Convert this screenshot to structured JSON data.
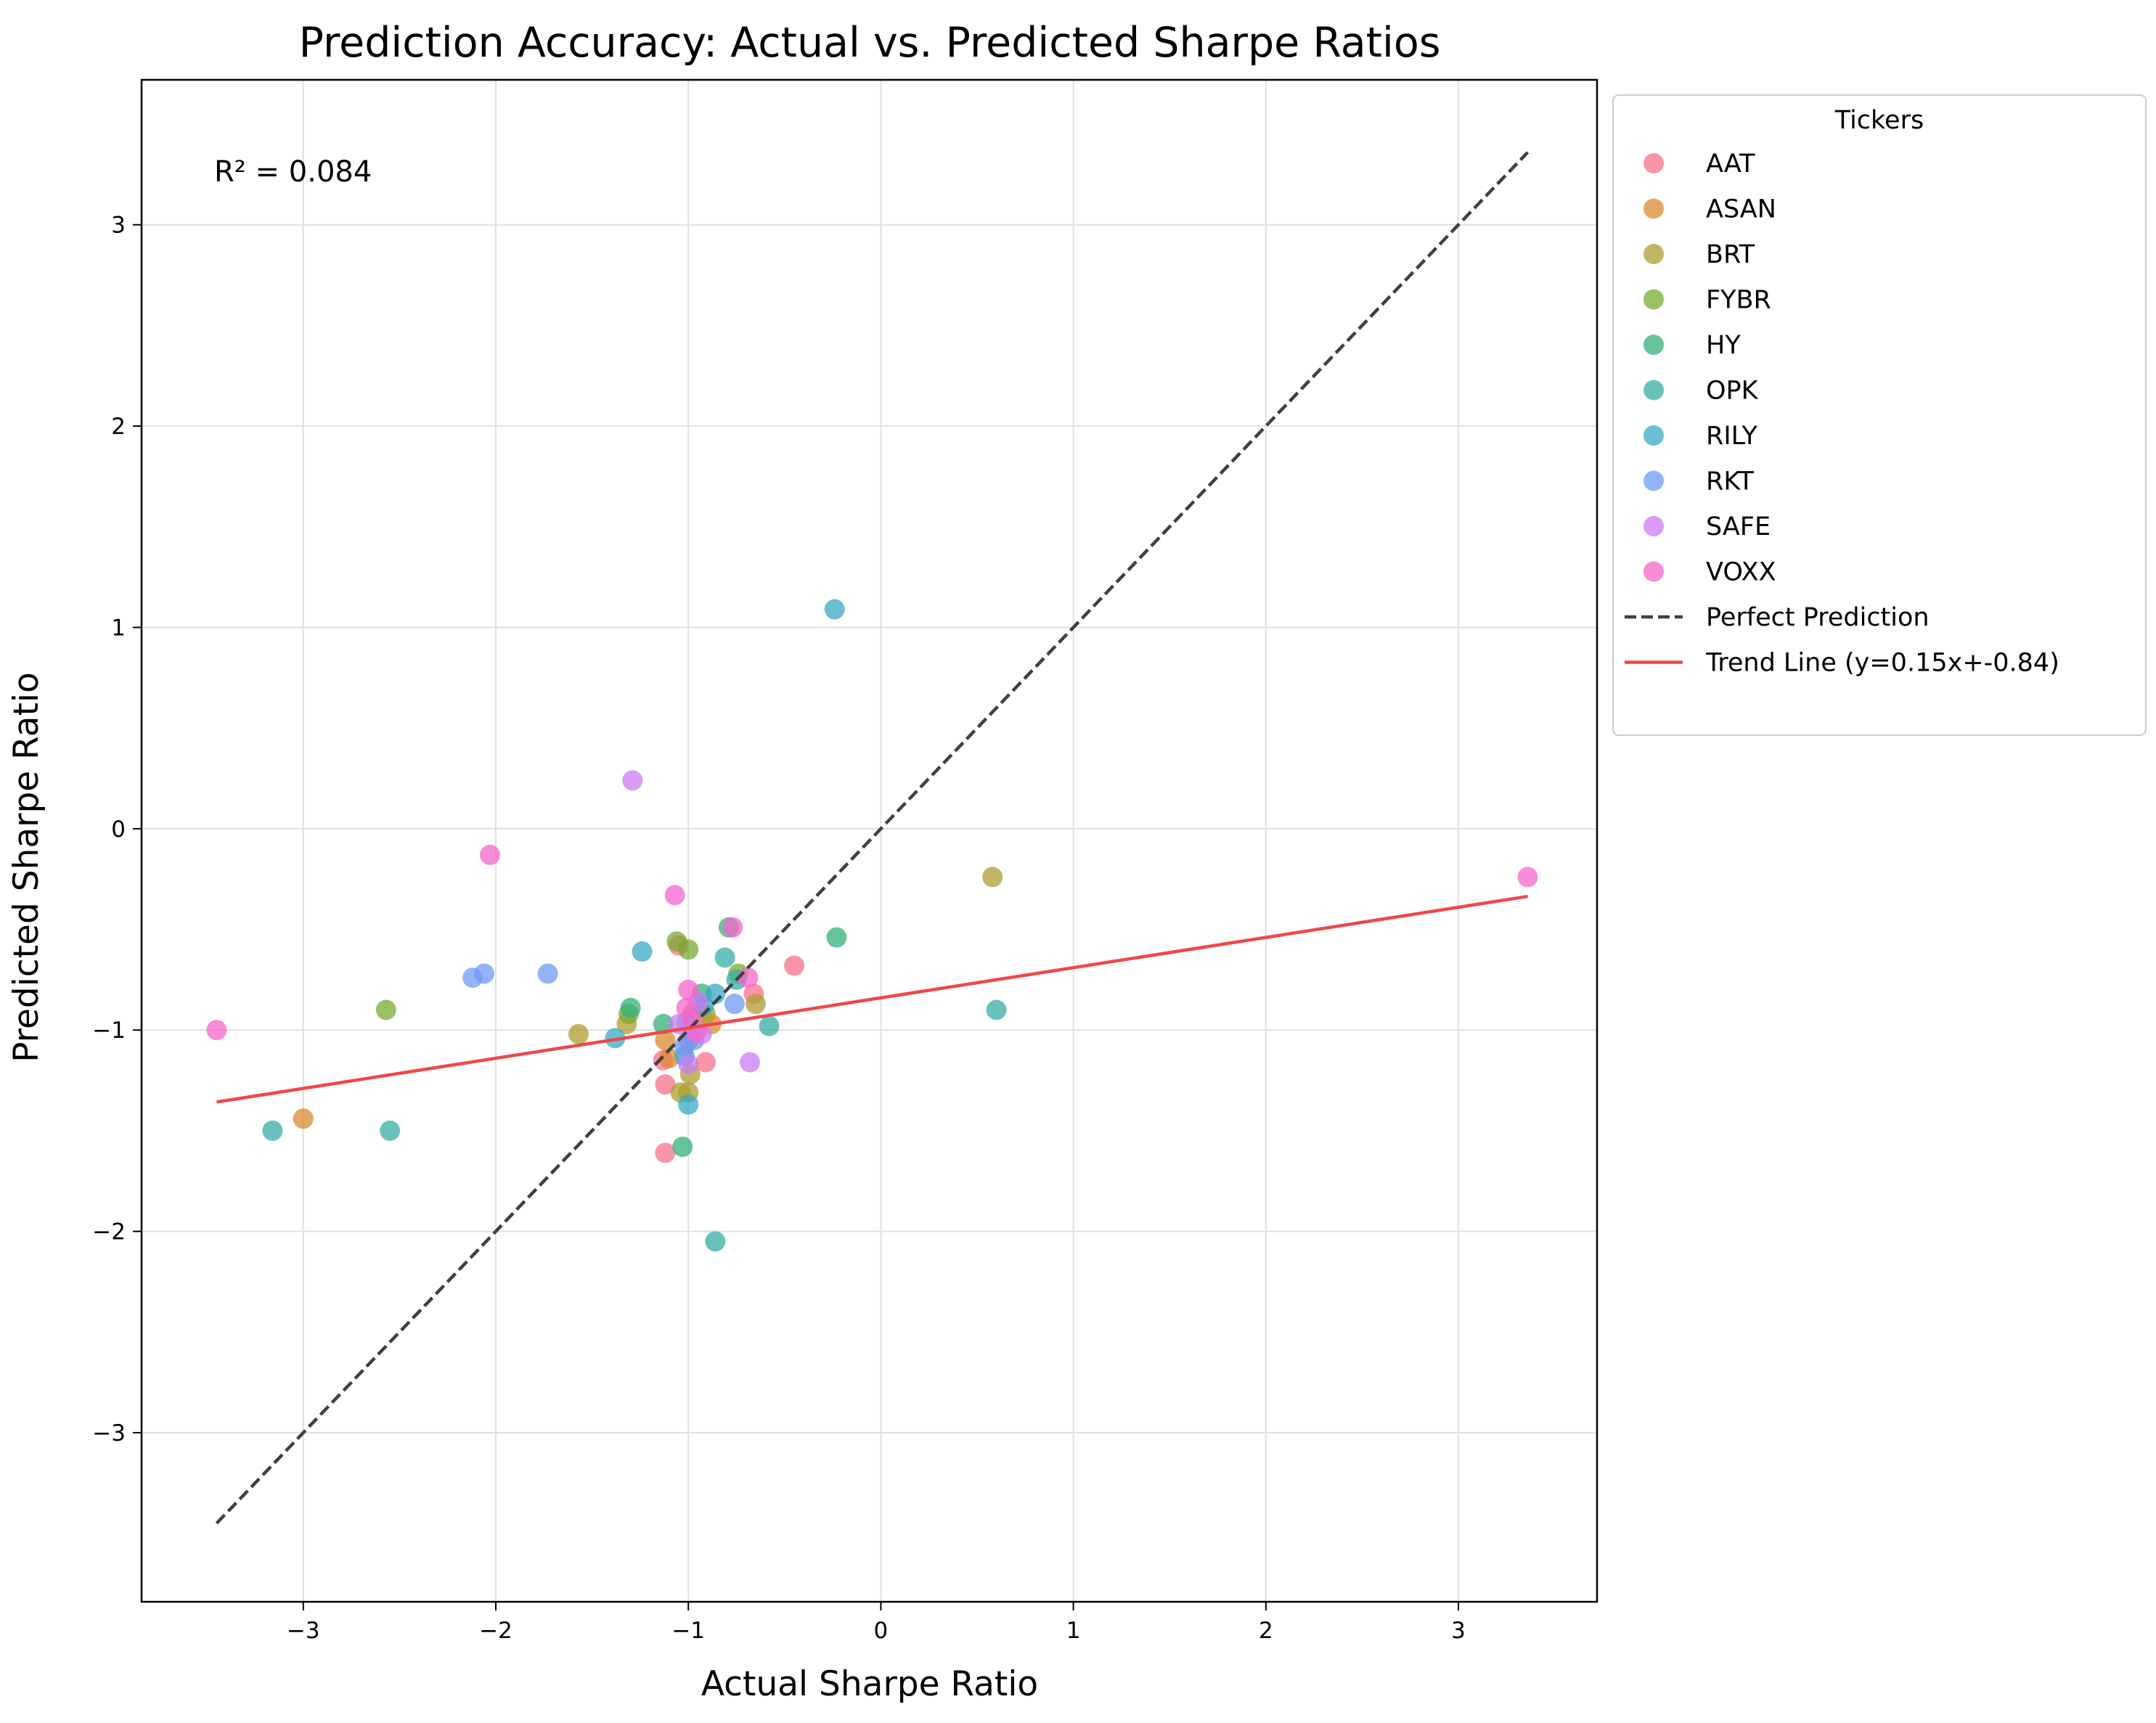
{
  "chart_data": {
    "type": "scatter",
    "title": "Prediction Accuracy: Actual vs. Predicted Sharpe Ratios",
    "xlabel": "Actual Sharpe Ratio",
    "ylabel": "Predicted Sharpe Ratio",
    "xlim": [
      -3.84,
      3.72
    ],
    "ylim": [
      -3.84,
      3.72
    ],
    "xticks": [
      -3,
      -2,
      -1,
      0,
      1,
      2,
      3
    ],
    "yticks": [
      -3,
      -2,
      -1,
      0,
      1,
      2,
      3
    ],
    "grid": true,
    "annotation": "R² = 0.084",
    "legend": {
      "title": "Tickers",
      "placement": "outside-upper-right"
    },
    "series": [
      {
        "name": "AAT",
        "color": "#f77189",
        "points": [
          [
            -1.13,
            -1.15
          ],
          [
            -1.12,
            -1.27
          ],
          [
            -1.12,
            -1.61
          ],
          [
            -0.91,
            -1.16
          ],
          [
            -0.45,
            -0.68
          ],
          [
            -0.66,
            -0.82
          ],
          [
            -1.05,
            -0.58
          ],
          [
            -1.0,
            -1.05
          ]
        ]
      },
      {
        "name": "ASAN",
        "color": "#dc8932",
        "points": [
          [
            -3.0,
            -1.44
          ],
          [
            -1.12,
            -1.05
          ],
          [
            -1.1,
            -1.14
          ],
          [
            -0.88,
            -0.97
          ],
          [
            -0.98,
            -0.92
          ]
        ]
      },
      {
        "name": "BRT",
        "color": "#ae9d31",
        "points": [
          [
            -1.57,
            -1.02
          ],
          [
            -1.32,
            -0.97
          ],
          [
            -1.04,
            -1.31
          ],
          [
            -1.0,
            -1.31
          ],
          [
            0.58,
            -0.24
          ],
          [
            -0.65,
            -0.87
          ],
          [
            -0.99,
            -1.22
          ],
          [
            -0.91,
            -0.92
          ]
        ]
      },
      {
        "name": "FYBR",
        "color": "#77ab31",
        "points": [
          [
            -2.57,
            -0.9
          ],
          [
            -1.06,
            -0.56
          ],
          [
            -1.0,
            -0.6
          ],
          [
            -1.31,
            -0.92
          ],
          [
            -0.74,
            -0.72
          ]
        ]
      },
      {
        "name": "HY",
        "color": "#33b07a",
        "points": [
          [
            -0.23,
            -0.54
          ],
          [
            -1.13,
            -0.97
          ],
          [
            -1.03,
            -1.58
          ],
          [
            -0.79,
            -0.49
          ],
          [
            -0.93,
            -0.82
          ],
          [
            -1.3,
            -0.89
          ]
        ]
      },
      {
        "name": "OPK",
        "color": "#36ada4",
        "points": [
          [
            -3.16,
            -1.5
          ],
          [
            -2.55,
            -1.5
          ],
          [
            -0.86,
            -2.05
          ],
          [
            0.6,
            -0.9
          ],
          [
            -0.58,
            -0.98
          ],
          [
            -0.81,
            -0.64
          ],
          [
            -0.75,
            -0.75
          ]
        ]
      },
      {
        "name": "RILY",
        "color": "#38a9c5",
        "points": [
          [
            -0.24,
            1.09
          ],
          [
            -1.24,
            -0.61
          ],
          [
            -1.38,
            -1.04
          ],
          [
            -1.0,
            -1.37
          ],
          [
            -0.86,
            -0.82
          ],
          [
            -1.02,
            -1.13
          ],
          [
            -0.92,
            -0.88
          ]
        ]
      },
      {
        "name": "RKT",
        "color": "#6e9bf4",
        "points": [
          [
            -2.12,
            -0.74
          ],
          [
            -2.06,
            -0.72
          ],
          [
            -1.73,
            -0.72
          ],
          [
            -1.01,
            -0.96
          ],
          [
            -0.97,
            -1.05
          ],
          [
            -0.76,
            -0.87
          ],
          [
            -1.02,
            -1.08
          ]
        ]
      },
      {
        "name": "SAFE",
        "color": "#cc7af4",
        "points": [
          [
            -1.29,
            0.24
          ],
          [
            -0.68,
            -1.16
          ],
          [
            -1.0,
            -1.17
          ],
          [
            -0.93,
            -1.02
          ],
          [
            -0.95,
            -0.86
          ],
          [
            -1.05,
            -0.97
          ]
        ]
      },
      {
        "name": "VOXX",
        "color": "#f565cc",
        "points": [
          [
            -3.45,
            -1.0
          ],
          [
            -2.03,
            -0.13
          ],
          [
            -1.07,
            -0.33
          ],
          [
            -0.77,
            -0.49
          ],
          [
            3.36,
            -0.24
          ],
          [
            -0.69,
            -0.74
          ],
          [
            -1.0,
            -0.8
          ],
          [
            -0.98,
            -0.95
          ],
          [
            -0.96,
            -1.01
          ],
          [
            -1.01,
            -0.89
          ]
        ]
      }
    ],
    "lines": [
      {
        "name": "Perfect Prediction",
        "color": "#404040",
        "style": "dashed",
        "x": [
          -3.45,
          3.36
        ],
        "y": [
          -3.45,
          3.36
        ]
      },
      {
        "name": "Trend Line (y=0.15x+-0.84)",
        "color": "#f04848",
        "style": "solid",
        "x": [
          -3.45,
          3.36
        ],
        "y": [
          -1.3575,
          -0.336
        ]
      }
    ]
  }
}
